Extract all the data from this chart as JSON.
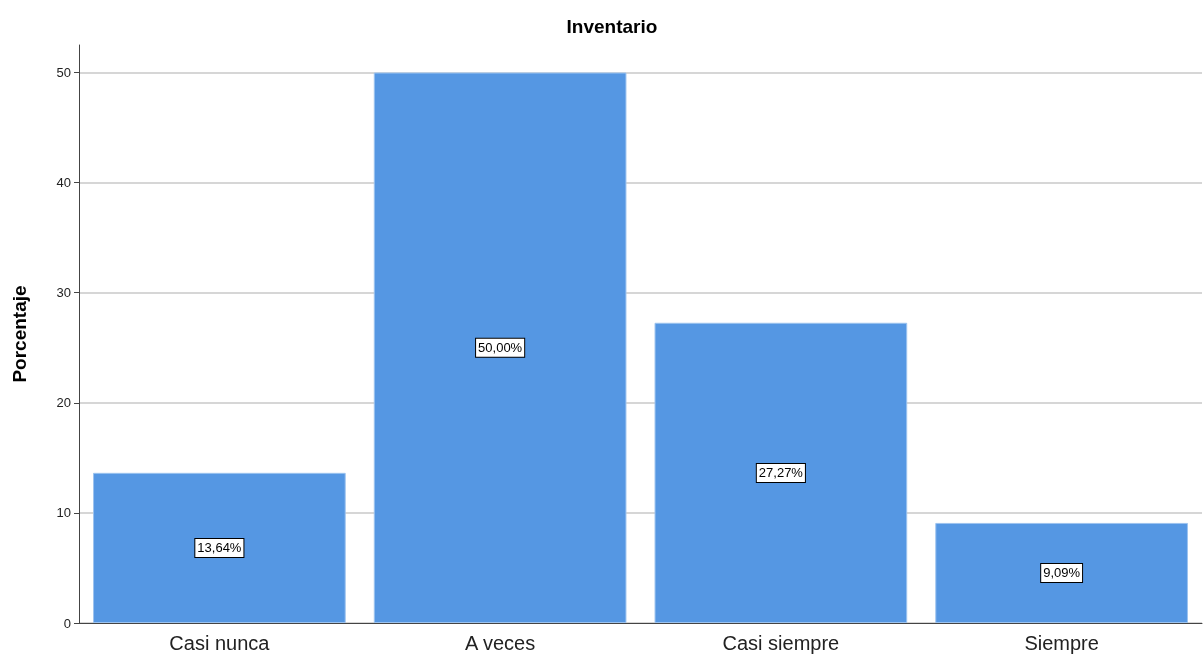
{
  "chart_data": {
    "type": "bar",
    "title": "Inventario",
    "ylabel": "Porcentaje",
    "categories": [
      "Casi nunca",
      "A veces",
      "Casi siempre",
      "Siempre"
    ],
    "values": [
      13.64,
      50.0,
      27.27,
      9.09
    ],
    "value_labels": [
      "13,64%",
      "50,00%",
      "27,27%",
      "9,09%"
    ],
    "color": "#5597e3",
    "ylim": [
      0,
      52.5
    ],
    "yticks": [
      0,
      10,
      20,
      30,
      40,
      50
    ],
    "grid": "y"
  }
}
